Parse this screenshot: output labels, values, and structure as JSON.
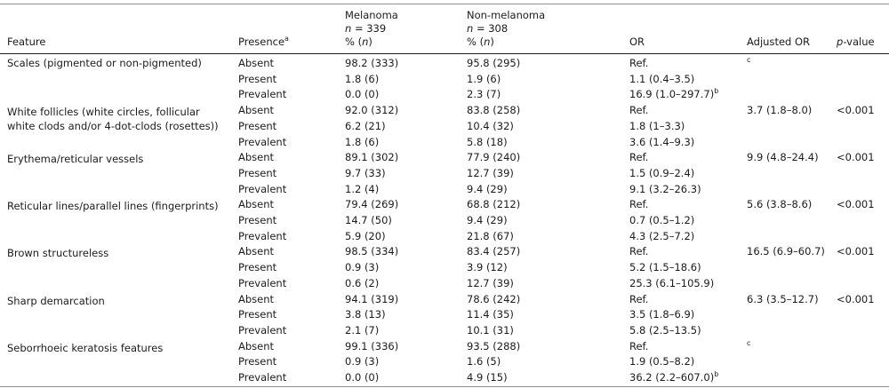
{
  "header": {
    "feature": "Feature",
    "presence": "Presence",
    "presence_footnote": "a",
    "melanoma": {
      "name": "Melanoma",
      "n_italic": "n",
      "n_rest": " = 339",
      "pct_pre": "% (",
      "pct_n": "n",
      "pct_post": ")"
    },
    "non_melanoma": {
      "name": "Non-melanoma",
      "n_italic": "n",
      "n_rest": " = 308",
      "pct_pre": "% (",
      "pct_n": "n",
      "pct_post": ")"
    },
    "or": "OR",
    "adjusted_or": "Adjusted OR",
    "p_value": {
      "p_italic": "p",
      "rest": "-value"
    }
  },
  "features": [
    {
      "name": "Scales (pigmented or non-pigmented)",
      "rows": [
        {
          "presence": "Absent",
          "melanoma": "98.2 (333)",
          "non_melanoma": "95.8 (295)",
          "or": "Ref.",
          "adjusted_or": "",
          "adj_sup": "c"
        },
        {
          "presence": "Present",
          "melanoma": "1.8 (6)",
          "non_melanoma": "1.9 (6)",
          "or": "1.1 (0.4–3.5)"
        },
        {
          "presence": "Prevalent",
          "melanoma": "0.0 (0)",
          "non_melanoma": "2.3 (7)",
          "or": "16.9 (1.0–297.7)",
          "or_sup": "b"
        }
      ]
    },
    {
      "name": "White follicles (white circles, follicular white clods and/or 4-dot-clods (rosettes))",
      "rows": [
        {
          "presence": "Absent",
          "melanoma": "92.0 (312)",
          "non_melanoma": "83.8 (258)",
          "or": "Ref.",
          "adjusted_or": "3.7 (1.8–8.0)",
          "p": "<0.001"
        },
        {
          "presence": "Present",
          "melanoma": "6.2 (21)",
          "non_melanoma": "10.4 (32)",
          "or": "1.8 (1–3.3)"
        },
        {
          "presence": "Prevalent",
          "melanoma": "1.8 (6)",
          "non_melanoma": "5.8 (18)",
          "or": "3.6 (1.4–9.3)"
        }
      ]
    },
    {
      "name": "Erythema/reticular vessels",
      "rows": [
        {
          "presence": "Absent",
          "melanoma": "89.1 (302)",
          "non_melanoma": "77.9 (240)",
          "or": "Ref.",
          "adjusted_or": "9.9 (4.8–24.4)",
          "p": "<0.001"
        },
        {
          "presence": "Present",
          "melanoma": "9.7 (33)",
          "non_melanoma": "12.7 (39)",
          "or": "1.5 (0.9–2.4)"
        },
        {
          "presence": "Prevalent",
          "melanoma": "1.2 (4)",
          "non_melanoma": "9.4 (29)",
          "or": "9.1 (3.2–26.3)"
        }
      ]
    },
    {
      "name": "Reticular lines/parallel lines (fingerprints)",
      "rows": [
        {
          "presence": "Absent",
          "melanoma": "79.4 (269)",
          "non_melanoma": "68.8 (212)",
          "or": "Ref.",
          "adjusted_or": "5.6 (3.8–8.6)",
          "p": "<0.001"
        },
        {
          "presence": "Present",
          "melanoma": "14.7 (50)",
          "non_melanoma": "9.4 (29)",
          "or": "0.7 (0.5–1.2)"
        },
        {
          "presence": "Prevalent",
          "melanoma": "5.9 (20)",
          "non_melanoma": "21.8 (67)",
          "or": "4.3 (2.5–7.2)"
        }
      ]
    },
    {
      "name": "Brown structureless",
      "rows": [
        {
          "presence": "Absent",
          "melanoma": "98.5 (334)",
          "non_melanoma": "83.4 (257)",
          "or": "Ref.",
          "adjusted_or": "16.5 (6.9–60.7)",
          "p": "<0.001"
        },
        {
          "presence": "Present",
          "melanoma": "0.9 (3)",
          "non_melanoma": "3.9 (12)",
          "or": "5.2 (1.5–18.6)"
        },
        {
          "presence": "Prevalent",
          "melanoma": "0.6 (2)",
          "non_melanoma": "12.7 (39)",
          "or": "25.3 (6.1–105.9)"
        }
      ]
    },
    {
      "name": "Sharp demarcation",
      "rows": [
        {
          "presence": "Absent",
          "melanoma": "94.1 (319)",
          "non_melanoma": "78.6 (242)",
          "or": "Ref.",
          "adjusted_or": "6.3 (3.5–12.7)",
          "p": "<0.001"
        },
        {
          "presence": "Present",
          "melanoma": "3.8 (13)",
          "non_melanoma": "11.4 (35)",
          "or": "3.5 (1.8–6.9)"
        },
        {
          "presence": "Prevalent",
          "melanoma": "2.1 (7)",
          "non_melanoma": "10.1 (31)",
          "or": "5.8 (2.5–13.5)"
        }
      ]
    },
    {
      "name": "Seborrhoeic keratosis features",
      "rows": [
        {
          "presence": "Absent",
          "melanoma": "99.1 (336)",
          "non_melanoma": "93.5 (288)",
          "or": "Ref.",
          "adjusted_or": "",
          "adj_sup": "c"
        },
        {
          "presence": "Present",
          "melanoma": "0.9 (3)",
          "non_melanoma": "1.6 (5)",
          "or": "1.9 (0.5–8.2)"
        },
        {
          "presence": "Prevalent",
          "melanoma": "0.0 (0)",
          "non_melanoma": "4.9 (15)",
          "or": "36.2 (2.2–607.0)",
          "or_sup": "b"
        }
      ]
    }
  ]
}
